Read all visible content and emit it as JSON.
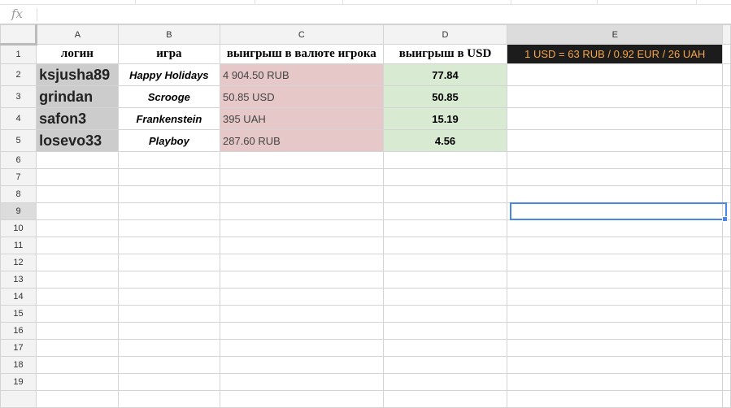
{
  "formula_bar": {
    "icon": "fx",
    "label": "fx",
    "value": ""
  },
  "columns": [
    "A",
    "B",
    "C",
    "D",
    "E"
  ],
  "selected_cell": "E9",
  "header_row": {
    "login": "логин",
    "game": "игра",
    "win_currency": "выигрыш в валюте игрока",
    "win_usd": "выигрыш в USD",
    "rate": "1 USD = 63 RUB / 0.92 EUR / 26 UAH"
  },
  "rows": [
    {
      "num": "2",
      "login": "ksjusha89",
      "game": "Happy Holidays",
      "win": "4 904.50 RUB",
      "usd": "77.84"
    },
    {
      "num": "3",
      "login": "grindan",
      "game": "Scrooge",
      "win": "50.85 USD",
      "usd": "50.85"
    },
    {
      "num": "4",
      "login": "safon3",
      "game": "Frankenstein",
      "win": "395 UAH",
      "usd": "15.19"
    },
    {
      "num": "5",
      "login": "losevo33",
      "game": "Playboy",
      "win": "287.60 RUB",
      "usd": "4.56"
    }
  ],
  "empty_rows": [
    "6",
    "7",
    "8",
    "9",
    "10",
    "11",
    "12",
    "13",
    "14",
    "15",
    "16",
    "17",
    "18",
    "19",
    ""
  ],
  "colors": {
    "login_bg": "#cccccc",
    "win_bg": "#e6c8c8",
    "usd_bg": "#d9ead3",
    "rate_bg": "#1c1c1c",
    "rate_text": "#f6a54a",
    "selection": "#4a86e8"
  }
}
